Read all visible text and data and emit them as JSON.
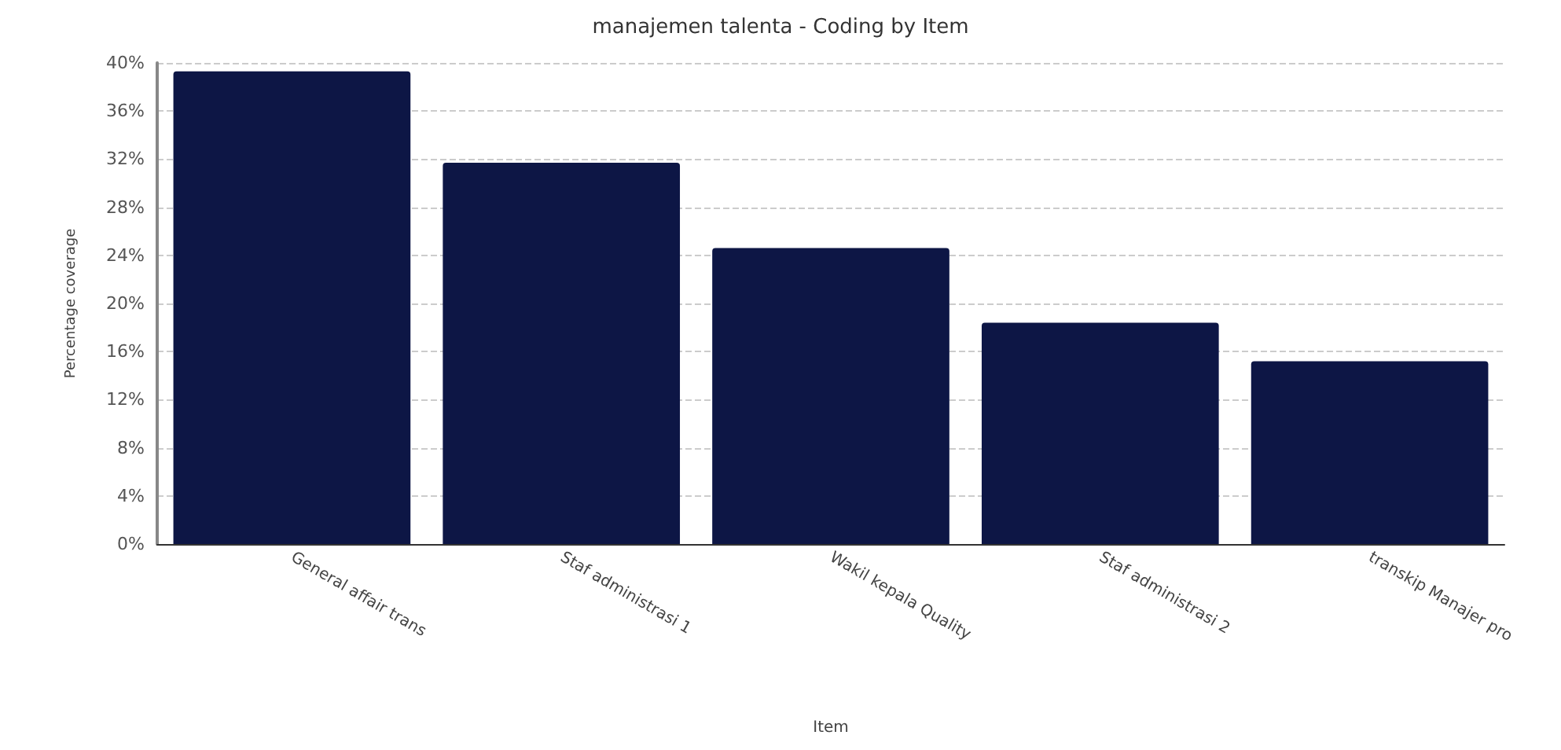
{
  "chart_data": {
    "type": "bar",
    "title": "manajemen talenta - Coding by Item",
    "xlabel": "Item",
    "ylabel": "Percentage coverage",
    "categories": [
      "General affair trans",
      "Staf administrasi 1",
      "Wakil kepala Quality",
      "Staf administrasi 2",
      "transkip Manajer pro"
    ],
    "series": [
      {
        "color": "#0d1645",
        "values": [
          39.3,
          31.7,
          24.6,
          18.4,
          15.2
        ]
      }
    ],
    "ylim": [
      0,
      40
    ],
    "yticks": [
      {
        "value": 0,
        "label": "0%"
      },
      {
        "value": 4,
        "label": "4%"
      },
      {
        "value": 8,
        "label": "8%"
      },
      {
        "value": 12,
        "label": "12%"
      },
      {
        "value": 16,
        "label": "16%"
      },
      {
        "value": 20,
        "label": "20%"
      },
      {
        "value": 24,
        "label": "24%"
      },
      {
        "value": 28,
        "label": "28%"
      },
      {
        "value": 32,
        "label": "32%"
      },
      {
        "value": 36,
        "label": "36%"
      },
      {
        "value": 40,
        "label": "40%"
      }
    ],
    "grid": "y"
  }
}
